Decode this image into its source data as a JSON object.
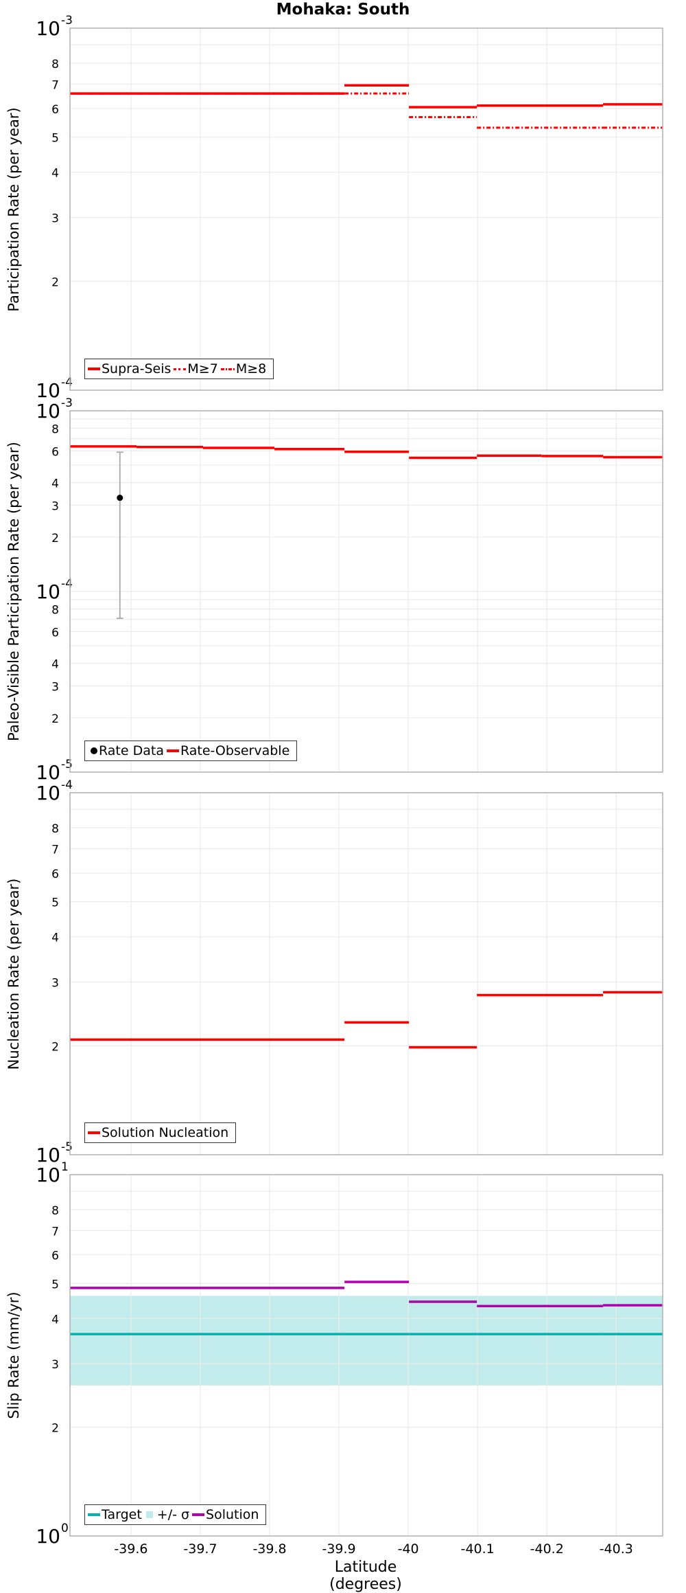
{
  "title": "Mohaka: South",
  "x_axis": {
    "label": "Latitude (degrees)",
    "ticks": [
      -39.6,
      -39.7,
      -39.8,
      -39.9,
      -40,
      -40.1,
      -40.2,
      -40.3
    ],
    "tick_labels": [
      "-39.6",
      "-39.7",
      "-39.8",
      "-39.9",
      "-40",
      "-40.1",
      "-40.2",
      "-40.3"
    ],
    "range": [
      -39.512,
      -40.367
    ]
  },
  "colors": {
    "red": "#ff0000",
    "target": "#00b3b3",
    "sigma_band": "#c2ecec",
    "solution": "#b000b0",
    "grid": "#ebebeb",
    "frame": "#b0b0b0",
    "errorbar": "#aaaaaa"
  },
  "chart_data": [
    {
      "type": "line",
      "subtype": "step",
      "panel": 1,
      "title": "Mohaka: South",
      "xlabel": "Latitude (degrees)",
      "ylabel": "Participation Rate (per year)",
      "yscale": "log",
      "ylim": [
        0.0001,
        0.001
      ],
      "y_tick_labels": [
        "10-4",
        "2",
        "3",
        "4",
        "5",
        "6",
        "7",
        "8",
        "10-3"
      ],
      "grid": true,
      "legend": {
        "position": "lower-left",
        "entries": [
          "Supra-Seis",
          "M≥7",
          "M≥8"
        ]
      },
      "segment_edges": [
        -39.512,
        -39.908,
        -40.001,
        -40.099,
        -40.281,
        -40.367
      ],
      "series": [
        {
          "name": "Supra-Seis",
          "style": "solid",
          "color": "#ff0000",
          "values": [
            0.00066,
            0.000695,
            0.000605,
            0.000611,
            0.000616
          ]
        },
        {
          "name": "M≥7",
          "style": "dotted",
          "color": "#ff0000",
          "values": [
            0.00066,
            0.000695,
            0.000605,
            0.000611,
            0.000616
          ]
        },
        {
          "name": "M≥8",
          "style": "dashdot",
          "color": "#ff0000",
          "values": [
            0.00066,
            0.00066,
            0.000568,
            0.000531,
            0.000531
          ]
        }
      ]
    },
    {
      "type": "line",
      "subtype": "step",
      "panel": 2,
      "xlabel": "Latitude (degrees)",
      "ylabel": "Paleo-Visible Participation Rate (per year)",
      "yscale": "log",
      "ylim": [
        1e-05,
        0.001
      ],
      "y_tick_labels": [
        "10-5",
        "2",
        "3",
        "4",
        "6",
        "8",
        "10-4",
        "2",
        "3",
        "4",
        "6",
        "8",
        "10-3"
      ],
      "grid": true,
      "legend": {
        "position": "lower-left",
        "entries": [
          "Rate Data",
          "Rate-Observable"
        ]
      },
      "segment_edges": [
        -39.512,
        -39.608,
        -39.704,
        -39.807,
        -39.908,
        -40.001,
        -40.099,
        -40.192,
        -40.281,
        -40.367
      ],
      "series": [
        {
          "name": "Rate-Observable",
          "style": "solid",
          "color": "#ff0000",
          "values": [
            0.000635,
            0.00063,
            0.000623,
            0.000614,
            0.000593,
            0.000549,
            0.000565,
            0.000562,
            0.000554
          ]
        }
      ],
      "points": [
        {
          "name": "Rate Data",
          "x": -39.584,
          "y": 0.00033,
          "y_low": 7.1e-05,
          "y_high": 0.00059
        }
      ]
    },
    {
      "type": "line",
      "subtype": "step",
      "panel": 3,
      "xlabel": "Latitude (degrees)",
      "ylabel": "Nucleation Rate (per year)",
      "yscale": "log",
      "ylim": [
        1e-05,
        0.0001
      ],
      "y_tick_labels": [
        "10-5",
        "2",
        "3",
        "4",
        "5",
        "6",
        "7",
        "8",
        "10-4"
      ],
      "grid": true,
      "legend": {
        "position": "lower-left",
        "entries": [
          "Solution Nucleation"
        ]
      },
      "segment_edges": [
        -39.512,
        -39.908,
        -40.001,
        -40.099,
        -40.281,
        -40.367
      ],
      "series": [
        {
          "name": "Solution Nucleation",
          "style": "solid",
          "color": "#ff0000",
          "values": [
            2.08e-05,
            2.32e-05,
            1.98e-05,
            2.76e-05,
            2.81e-05
          ]
        }
      ]
    },
    {
      "type": "line",
      "subtype": "step",
      "panel": 4,
      "xlabel": "Latitude (degrees)",
      "ylabel": "Slip Rate (mm/yr)",
      "yscale": "log",
      "ylim": [
        1,
        10
      ],
      "y_tick_labels": [
        "100",
        "2",
        "3",
        "4",
        "5",
        "6",
        "7",
        "8",
        "101"
      ],
      "grid": true,
      "legend": {
        "position": "lower-left",
        "entries": [
          "Target",
          "+/- σ",
          "Solution"
        ]
      },
      "segment_edges": [
        -39.512,
        -39.908,
        -40.001,
        -40.099,
        -40.281,
        -40.367
      ],
      "series": [
        {
          "name": "Target",
          "style": "solid",
          "color": "#00b3b3",
          "values": [
            3.62,
            3.62,
            3.62,
            3.62,
            3.62
          ]
        },
        {
          "name": "Solution",
          "style": "solid",
          "color": "#b000b0",
          "values": [
            4.86,
            5.05,
            4.45,
            4.33,
            4.35
          ]
        }
      ],
      "band": {
        "name": "+/- σ",
        "low": 2.61,
        "high": 4.62,
        "color": "#c2ecec"
      }
    }
  ],
  "panels": [
    {
      "ylabel": "Participation Rate (per year)",
      "legend": [
        "Supra-Seis",
        "M≥7",
        "M≥8"
      ]
    },
    {
      "ylabel": "Paleo-Visible Participation Rate (per year)",
      "legend": [
        "Rate Data",
        "Rate-Observable"
      ]
    },
    {
      "ylabel": "Nucleation Rate (per year)",
      "legend": [
        "Solution Nucleation"
      ]
    },
    {
      "ylabel": "Slip Rate (mm/yr)",
      "legend": [
        "Target",
        "+/- σ",
        "Solution"
      ]
    }
  ]
}
